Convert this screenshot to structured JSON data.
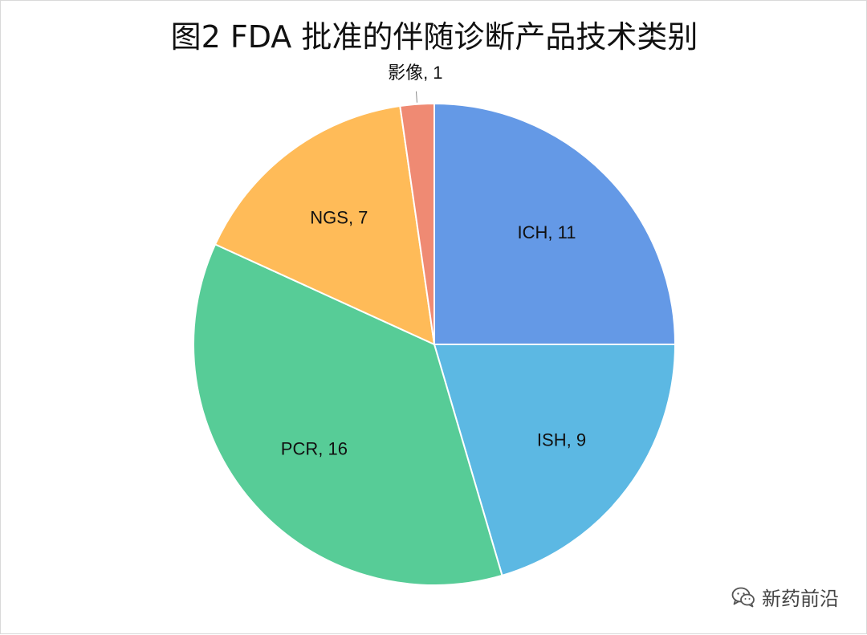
{
  "chart_data": {
    "type": "pie",
    "title": "图2 FDA 批准的伴随诊断产品技术类别",
    "slices": [
      {
        "label": "ICH",
        "value": 11,
        "display": "ICH, 11",
        "color": "#6499e6"
      },
      {
        "label": "ISH",
        "value": 9,
        "display": "ISH, 9",
        "color": "#5cb8e3"
      },
      {
        "label": "PCR",
        "value": 16,
        "display": "PCR, 16",
        "color": "#57cc97"
      },
      {
        "label": "NGS",
        "value": 7,
        "display": "NGS, 7",
        "color": "#ffbb58"
      },
      {
        "label": "影像",
        "value": 1,
        "display": "影像, 1",
        "color": "#ef8a73"
      }
    ],
    "start": "12 o'clock",
    "direction": "clockwise"
  },
  "watermark": {
    "text": "新药前沿",
    "icon": "wechat-icon"
  }
}
